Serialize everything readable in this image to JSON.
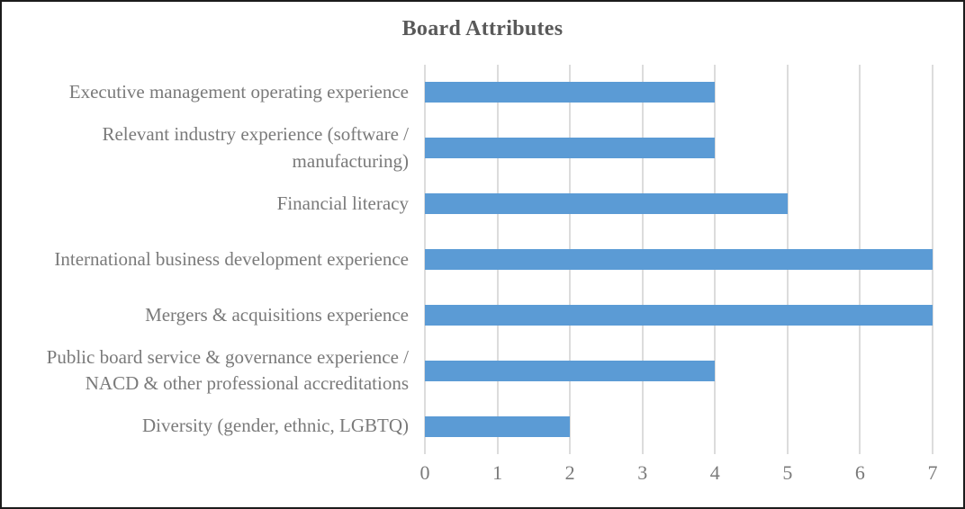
{
  "window": {
    "background_color": "#ffffff",
    "border_color": "#1c1c1c"
  },
  "chart_data": {
    "type": "bar",
    "orientation": "horizontal",
    "title": "Board Attributes",
    "categories": [
      "Executive management operating experience",
      "Relevant industry experience (software / manufacturing)",
      "Financial literacy",
      "International business development experience",
      "Mergers & acquisitions experience",
      "Public board service & governance experience / NACD & other professional accreditations",
      "Diversity (gender, ethnic, LGBTQ)"
    ],
    "values": [
      4,
      4,
      5,
      7,
      7,
      4,
      2
    ],
    "xlabel": "",
    "ylabel": "",
    "xlim": [
      0,
      7
    ],
    "x_ticks": [
      0,
      1,
      2,
      3,
      4,
      5,
      6,
      7
    ],
    "grid": "vertical-only",
    "legend": "none",
    "colors": {
      "bar": "#5B9BD5",
      "gridline": "#DCDCDC",
      "title_text": "#595959",
      "axis_text": "#7a7a7a",
      "label_text": "#7a7a7a"
    }
  }
}
